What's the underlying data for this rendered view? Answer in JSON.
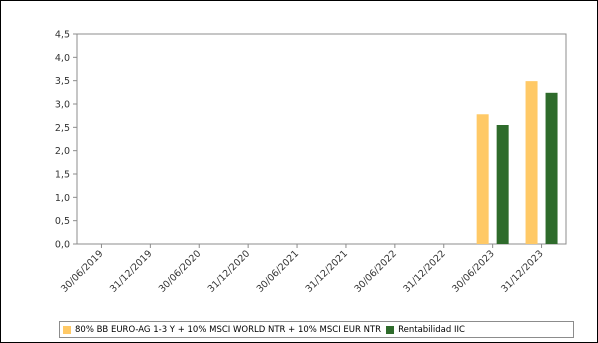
{
  "chart_data": {
    "type": "bar",
    "categories": [
      "30/06/2019",
      "31/12/2019",
      "30/06/2020",
      "31/12/2020",
      "30/06/2021",
      "31/12/2021",
      "30/06/2022",
      "31/12/2022",
      "30/06/2023",
      "31/12/2023"
    ],
    "series": [
      {
        "name": "80% BB EURO-AG 1-3 Y + 10% MSCI WORLD NTR + 10% MSCI EUR NTR",
        "color": "#FFC966",
        "values": [
          null,
          null,
          null,
          null,
          null,
          null,
          null,
          null,
          2.78,
          3.49
        ]
      },
      {
        "name": "Rentabilidad IIC",
        "color": "#2E6B2B",
        "values": [
          null,
          null,
          null,
          null,
          null,
          null,
          null,
          null,
          2.55,
          3.24
        ]
      }
    ],
    "ylim": [
      0,
      4.5
    ],
    "yticks": [
      "0,0",
      "0,5",
      "1,0",
      "1,5",
      "2,0",
      "2,5",
      "3,0",
      "3,5",
      "4,0",
      "4,5"
    ],
    "ytick_values": [
      0,
      0.5,
      1.0,
      1.5,
      2.0,
      2.5,
      3.0,
      3.5,
      4.0,
      4.5
    ],
    "grid": false,
    "legend_position": "bottom"
  }
}
